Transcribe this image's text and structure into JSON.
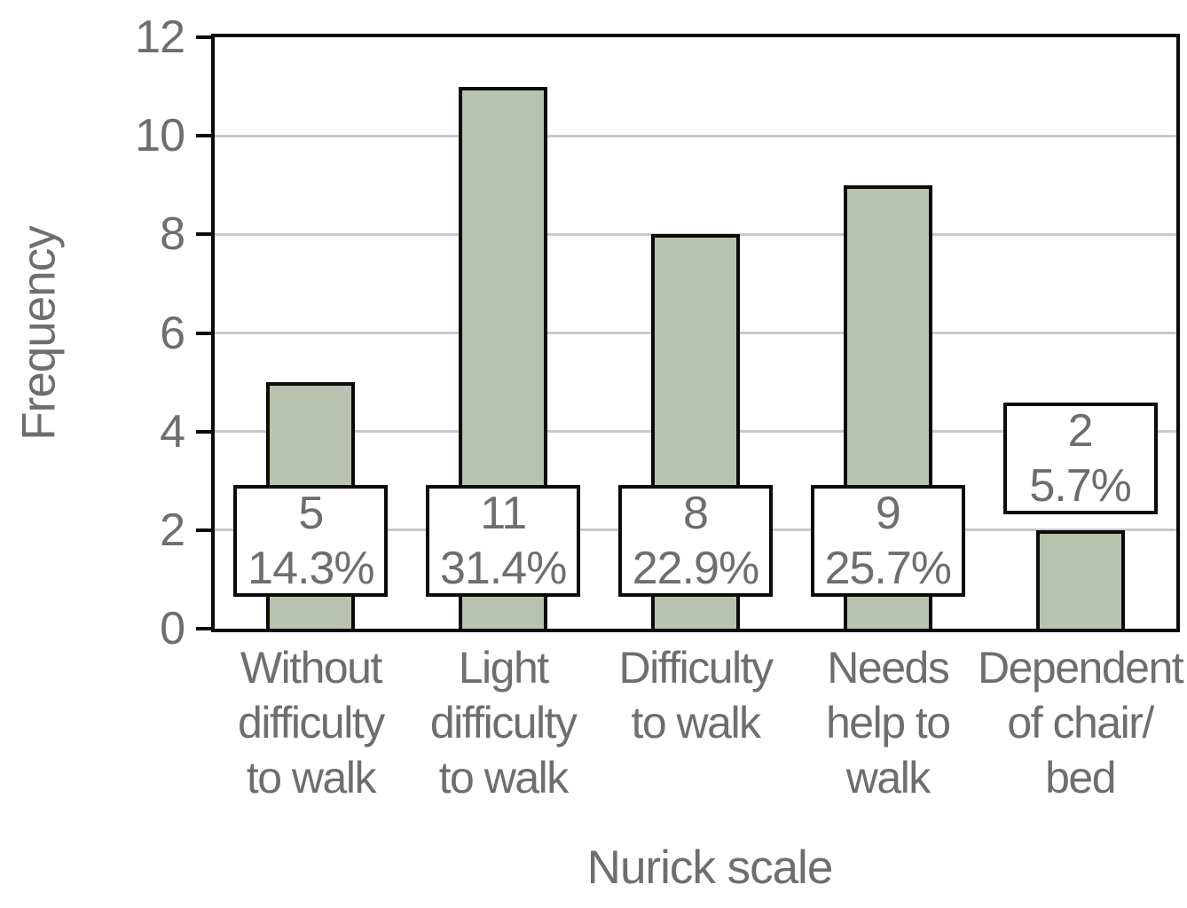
{
  "chart_data": {
    "type": "bar",
    "title": "",
    "xlabel": "Nurick scale",
    "ylabel": "Frequency",
    "categories": [
      "Without difficulty to walk",
      "Light difficulty to walk",
      "Difficulty to walk",
      "Needs help to walk",
      "Dependent of chair/bed"
    ],
    "category_display_lines": [
      [
        "Without",
        "difficulty",
        "to walk"
      ],
      [
        "Light",
        "difficulty",
        "to walk"
      ],
      [
        "Difficulty",
        "to walk"
      ],
      [
        "Needs",
        "help to",
        "walk"
      ],
      [
        "Dependent",
        "of chair/",
        "bed"
      ]
    ],
    "values": [
      5,
      11,
      8,
      9,
      2
    ],
    "value_labels": [
      "5",
      "11",
      "8",
      "9",
      "2"
    ],
    "percent_labels": [
      "14.3%",
      "31.4%",
      "22.9%",
      "25.7%",
      "5.7%"
    ],
    "ylim": [
      0,
      12
    ],
    "yticks": [
      0,
      2,
      4,
      6,
      8,
      10,
      12
    ],
    "gridline_values": [
      2,
      4,
      6,
      8,
      10
    ],
    "grid": true,
    "legend": false,
    "colors": {
      "bar_fill": "#b8c2ae",
      "bar_border": "#0b0b0b",
      "axis": "#0b0b0b",
      "gridline": "#c9c9c9",
      "text": "#6e6e6e",
      "background": "#ffffff",
      "label_box_fill": "#ffffff"
    }
  }
}
